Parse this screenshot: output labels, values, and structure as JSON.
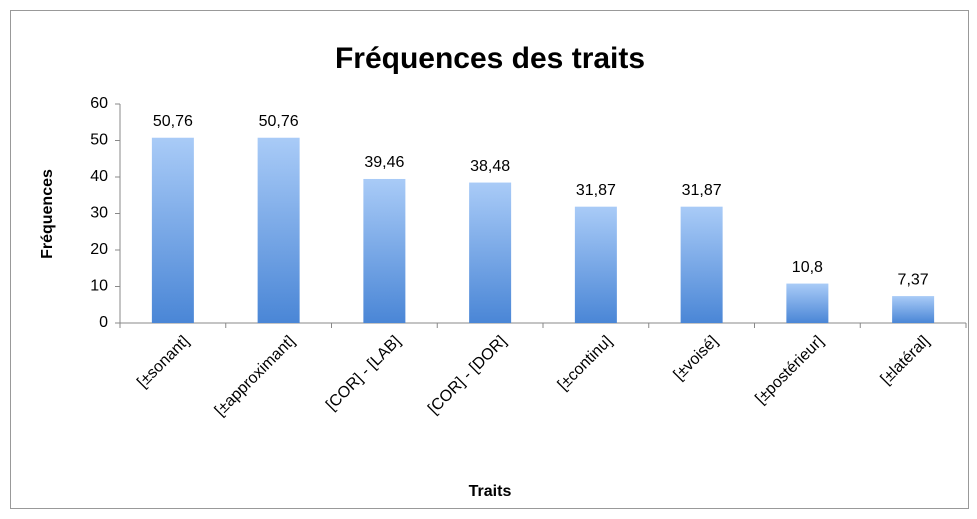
{
  "chart_data": {
    "type": "bar",
    "title": "Fréquences des traits",
    "x_label": "Traits",
    "y_label": "Fréquences",
    "categories": [
      "[±sonant]",
      "[±approximant]",
      "[COR] - [LAB]",
      "[COR] - [DOR]",
      "[±continu]",
      "[±voisé]",
      "[±postérieur]",
      "[±latéral]"
    ],
    "values": [
      50.76,
      50.76,
      39.46,
      38.48,
      31.87,
      31.87,
      10.8,
      7.37
    ],
    "value_labels": [
      "50,76",
      "50,76",
      "39,46",
      "38,48",
      "31,87",
      "31,87",
      "10,8",
      "7,37"
    ],
    "color": "#4a86d6",
    "ylim": [
      0,
      60
    ],
    "yticks": [
      0,
      10,
      20,
      30,
      40,
      50,
      60
    ],
    "grid": false
  }
}
